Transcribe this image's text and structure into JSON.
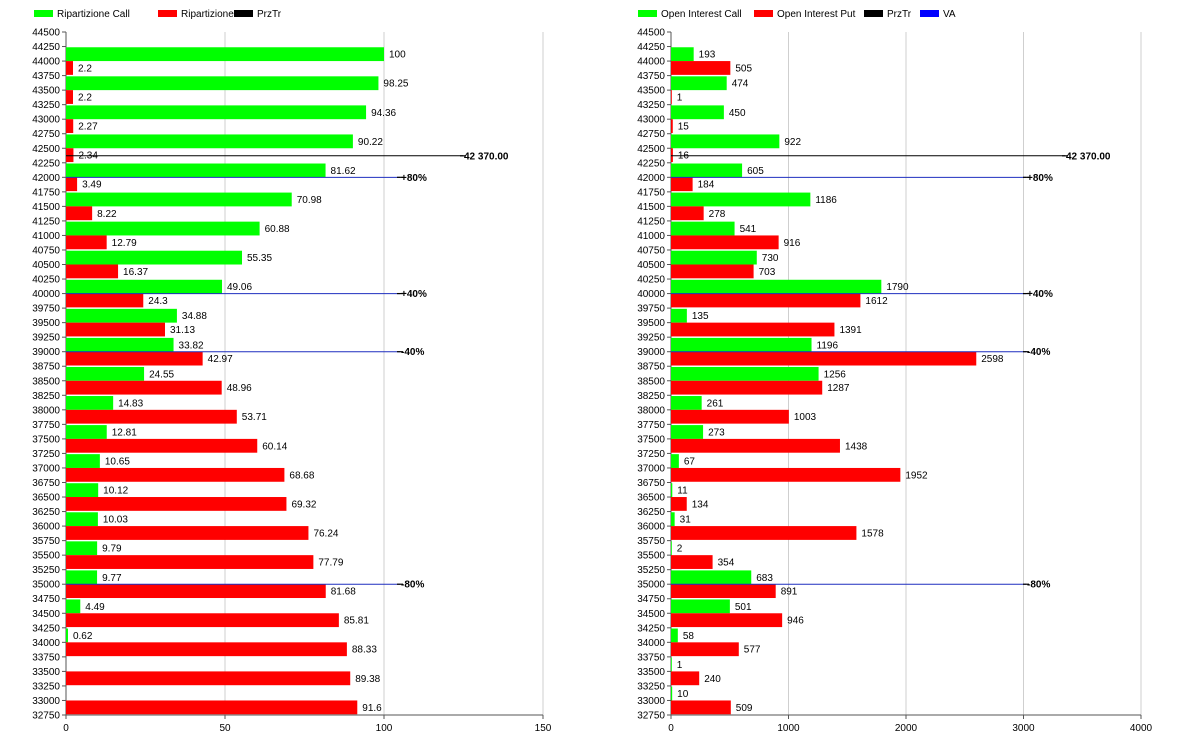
{
  "chart_data": [
    {
      "type": "bar",
      "orientation": "horizontal",
      "legend": [
        {
          "name": "Ripartizione Call",
          "color": "#00ff00"
        },
        {
          "name": "Ripartizione Put",
          "color": "#ff0000"
        },
        {
          "name": "PrzTr",
          "color": "#000000"
        }
      ],
      "y_ticks": [
        32750,
        33000,
        33250,
        33500,
        33750,
        34000,
        34250,
        34500,
        34750,
        35000,
        35250,
        35500,
        35750,
        36000,
        36250,
        36500,
        36750,
        37000,
        37250,
        37500,
        37750,
        38000,
        38250,
        38500,
        38750,
        39000,
        39250,
        39500,
        39750,
        40000,
        40250,
        40500,
        40750,
        41000,
        41250,
        41500,
        41750,
        42000,
        42250,
        42500,
        42750,
        43000,
        43250,
        43500,
        43750,
        44000,
        44250,
        44500
      ],
      "ylim": [
        32750,
        44500
      ],
      "x_ticks": [
        0,
        50,
        100,
        150
      ],
      "xlim": [
        0,
        150
      ],
      "strikes": [
        44000,
        43500,
        43000,
        42500,
        42000,
        41500,
        41000,
        40500,
        40000,
        39500,
        39000,
        38500,
        38000,
        37500,
        37000,
        36500,
        36000,
        35500,
        35000,
        34500,
        34000,
        33500,
        33000
      ],
      "series": [
        {
          "name": "Ripartizione Call",
          "color": "#00ff00",
          "values": [
            100,
            98.25,
            94.36,
            90.22,
            81.62,
            70.98,
            60.88,
            55.35,
            49.06,
            34.88,
            33.82,
            24.55,
            14.83,
            12.81,
            10.65,
            10.12,
            10.03,
            9.79,
            9.77,
            4.49,
            0.62,
            null,
            null
          ]
        },
        {
          "name": "Ripartizione Put",
          "color": "#ff0000",
          "values": [
            2.2,
            2.2,
            2.27,
            2.34,
            3.49,
            8.22,
            12.79,
            16.37,
            24.3,
            31.13,
            42.97,
            48.96,
            53.71,
            60.14,
            68.68,
            69.32,
            76.24,
            77.79,
            81.68,
            85.81,
            88.33,
            89.38,
            91.6
          ]
        }
      ],
      "reference_lines": [
        {
          "y": 42370,
          "label": "42 370.00",
          "color": "#000000"
        },
        {
          "y": 42000,
          "label": "+80%",
          "color": "#1f2fbf"
        },
        {
          "y": 40000,
          "label": "+40%",
          "color": "#1f2fbf"
        },
        {
          "y": 39000,
          "label": "-40%",
          "color": "#1f2fbf"
        },
        {
          "y": 35000,
          "label": "-80%",
          "color": "#1f2fbf"
        }
      ]
    },
    {
      "type": "bar",
      "orientation": "horizontal",
      "legend": [
        {
          "name": "Open Interest Call",
          "color": "#00ff00"
        },
        {
          "name": "Open Interest Put",
          "color": "#ff0000"
        },
        {
          "name": "PrzTr",
          "color": "#000000"
        },
        {
          "name": "VA",
          "color": "#0000ff"
        }
      ],
      "y_ticks": [
        32750,
        33000,
        33250,
        33500,
        33750,
        34000,
        34250,
        34500,
        34750,
        35000,
        35250,
        35500,
        35750,
        36000,
        36250,
        36500,
        36750,
        37000,
        37250,
        37500,
        37750,
        38000,
        38250,
        38500,
        38750,
        39000,
        39250,
        39500,
        39750,
        40000,
        40250,
        40500,
        40750,
        41000,
        41250,
        41500,
        41750,
        42000,
        42250,
        42500,
        42750,
        43000,
        43250,
        43500,
        43750,
        44000,
        44250,
        44500
      ],
      "ylim": [
        32750,
        44500
      ],
      "x_ticks": [
        0,
        1000,
        2000,
        3000,
        4000
      ],
      "xlim": [
        0,
        4000
      ],
      "strikes": [
        44000,
        43500,
        43000,
        42500,
        42000,
        41500,
        41000,
        40500,
        40000,
        39500,
        39000,
        38500,
        38000,
        37500,
        37000,
        36500,
        36000,
        35500,
        35000,
        34500,
        34000,
        33500,
        33000
      ],
      "series": [
        {
          "name": "Open Interest Call",
          "color": "#00ff00",
          "values": [
            193,
            474,
            450,
            922,
            605,
            1186,
            541,
            730,
            1790,
            135,
            1196,
            1256,
            261,
            273,
            67,
            11,
            31,
            2,
            683,
            501,
            58,
            1,
            10
          ]
        },
        {
          "name": "Open Interest Put",
          "color": "#ff0000",
          "values": [
            505,
            1,
            15,
            16,
            184,
            278,
            916,
            703,
            1612,
            1391,
            2598,
            1287,
            1003,
            1438,
            1952,
            134,
            1578,
            354,
            891,
            946,
            577,
            240,
            509
          ]
        }
      ],
      "reference_lines": [
        {
          "y": 42370,
          "label": "42 370.00",
          "color": "#000000"
        },
        {
          "y": 42000,
          "label": "+80%",
          "color": "#1f2fbf"
        },
        {
          "y": 40000,
          "label": "+40%",
          "color": "#1f2fbf"
        },
        {
          "y": 39000,
          "label": "-40%",
          "color": "#1f2fbf"
        },
        {
          "y": 35000,
          "label": "-80%",
          "color": "#1f2fbf"
        }
      ]
    }
  ]
}
